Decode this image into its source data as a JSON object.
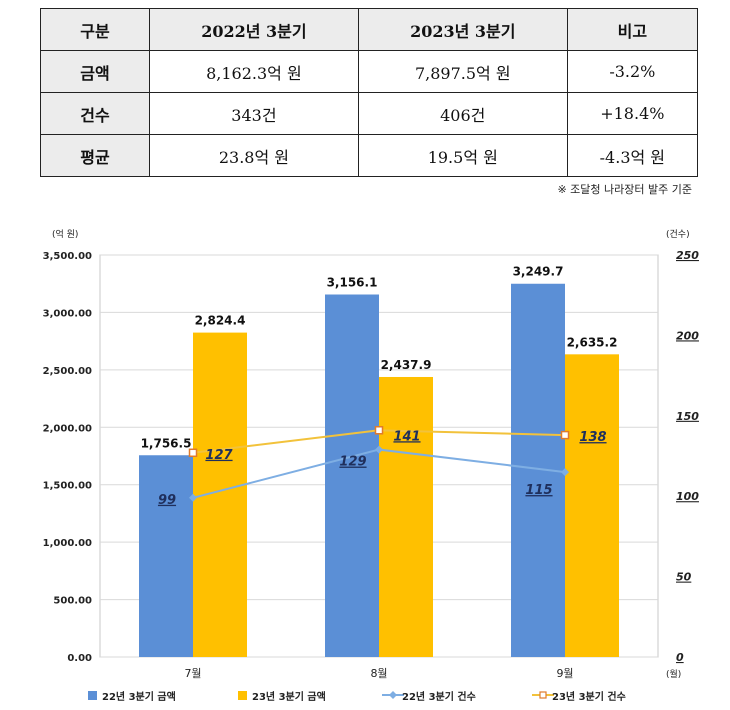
{
  "table": {
    "headers": [
      "구분",
      "2022년 3분기",
      "2023년 3분기",
      "비고"
    ],
    "rows": [
      {
        "label": "금액",
        "v2022": "8,162.3억 원",
        "v2023": "7,897.5억 원",
        "note": "-3.2%"
      },
      {
        "label": "건수",
        "v2022": "343건",
        "v2023": "406건",
        "note": "+18.4%"
      },
      {
        "label": "평균",
        "v2022": "23.8억 원",
        "v2023": "19.5억 원",
        "note": "-4.3억 원"
      }
    ]
  },
  "source_note": "※ 조달청 나라장터 발주 기준",
  "chart_data": {
    "type": "bar",
    "categories": [
      "7월",
      "8월",
      "9월"
    ],
    "x_unit": "(월)",
    "left_axis": {
      "unit": "(억 원)",
      "min": 0,
      "max": 3500,
      "ticks": [
        "0.00",
        "500.00",
        "1,000.00",
        "1,500.00",
        "2,000.00",
        "2,500.00",
        "3,000.00",
        "3,500.00"
      ]
    },
    "right_axis": {
      "unit": "(건수)",
      "min": 0,
      "max": 250,
      "ticks": [
        "0",
        "50",
        "100",
        "150",
        "200",
        "250"
      ]
    },
    "series": [
      {
        "name": "22년 3분기 금액",
        "kind": "bar",
        "color": "#5b8fd6",
        "values": [
          1756.5,
          3156.1,
          3249.7
        ],
        "labels": [
          "1,756.5",
          "3,156.1",
          "3,249.7"
        ]
      },
      {
        "name": "23년 3분기 금액",
        "kind": "bar",
        "color": "#ffc000",
        "values": [
          2824.4,
          2437.9,
          2635.2
        ],
        "labels": [
          "2,824.4",
          "2,437.9",
          "2,635.2"
        ]
      },
      {
        "name": "22년 3분기 건수",
        "kind": "line",
        "color": "#7eaee3",
        "values": [
          99,
          129,
          115
        ],
        "labels": [
          "99",
          "129",
          "115"
        ]
      },
      {
        "name": "23년 3분기 건수",
        "kind": "line",
        "color": "#f2c23b",
        "values": [
          127,
          141,
          138
        ],
        "labels": [
          "127",
          "141",
          "138"
        ]
      }
    ],
    "grid": "horizontal",
    "legend_position": "bottom"
  }
}
